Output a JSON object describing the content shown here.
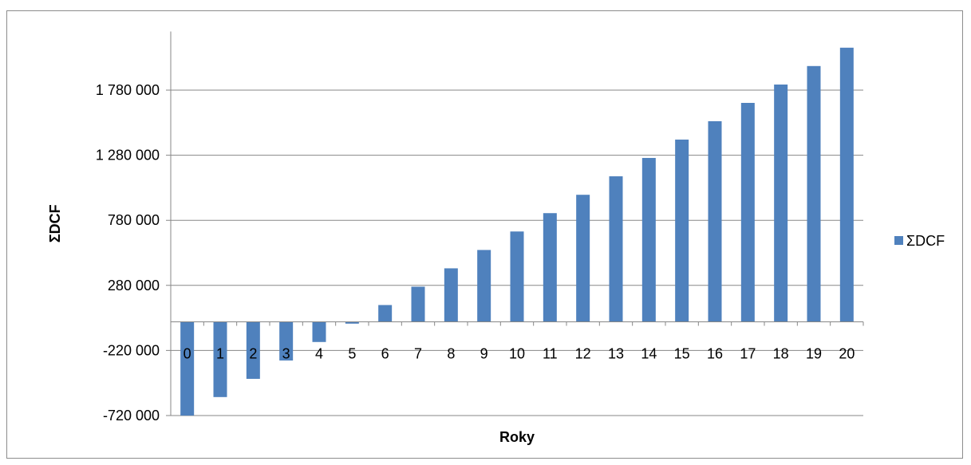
{
  "chart_data": {
    "type": "bar",
    "title": "",
    "xlabel": "Roky",
    "ylabel": "ΣDCF",
    "categories": [
      "0",
      "1",
      "2",
      "3",
      "4",
      "5",
      "6",
      "7",
      "8",
      "9",
      "10",
      "11",
      "12",
      "13",
      "14",
      "15",
      "16",
      "17",
      "18",
      "19",
      "20"
    ],
    "series": [
      {
        "name": "ΣDCF",
        "color": "#4f81bd",
        "values": [
          -720000,
          -578000,
          -438000,
          -297000,
          -155000,
          -14000,
          129000,
          270000,
          411000,
          552000,
          694000,
          835000,
          976000,
          1118000,
          1259000,
          1400000,
          1541000,
          1682000,
          1823000,
          1965000,
          2106000
        ]
      }
    ],
    "y_ticks": [
      -720000,
      -220000,
      280000,
      780000,
      1280000,
      1780000
    ],
    "y_tick_labels": [
      "-720 000",
      "-220 000",
      "280 000",
      "780 000",
      "1 280 000",
      "1 780 000"
    ],
    "ylim": [
      -720000,
      2230000
    ],
    "grid": true,
    "legend_position": "right"
  }
}
